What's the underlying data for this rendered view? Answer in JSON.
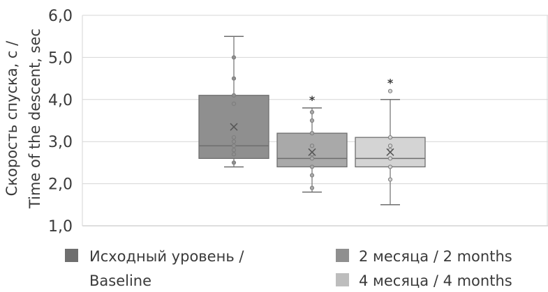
{
  "chart_data": {
    "type": "box",
    "ylabel_line1": "Скорость спуска, с /",
    "ylabel_line2": "Time of the descent, sec",
    "ylim": [
      1.0,
      6.0
    ],
    "yticks": [
      "6,0",
      "5,0",
      "4,0",
      "3,0",
      "2,0",
      "1,0"
    ],
    "ytick_values": [
      6,
      5,
      4,
      3,
      2,
      1
    ],
    "grid": true,
    "legend_position": "bottom",
    "series": [
      {
        "name": "Исходный уровень / Baseline",
        "legend_line1": "Исходный уровень /",
        "legend_line2": "Baseline",
        "color": "#8f8f8f",
        "legend_color": "#6f6f6f",
        "whisker_min": 2.4,
        "q1": 2.6,
        "median": 2.9,
        "q3": 4.1,
        "whisker_max": 5.5,
        "mean": 3.35,
        "points": [
          5.0,
          4.5,
          4.1,
          3.9,
          3.1,
          3.0,
          2.9,
          2.8,
          2.7,
          2.5
        ],
        "significance": ""
      },
      {
        "name": "2 месяца / 2 months",
        "legend_line1": "2 месяца / 2 months",
        "legend_line2": "",
        "color": "#a9a9a9",
        "legend_color": "#8f8f8f",
        "whisker_min": 1.8,
        "q1": 2.4,
        "median": 2.6,
        "q3": 3.2,
        "whisker_max": 3.8,
        "mean": 2.75,
        "points": [
          3.7,
          3.5,
          3.2,
          2.9,
          2.7,
          2.6,
          2.4,
          2.2,
          1.9
        ],
        "significance": "*"
      },
      {
        "name": "4 месяца / 4 months",
        "legend_line1": "4 месяца / 4 months",
        "legend_line2": "",
        "color": "#d4d4d4",
        "legend_color": "#bdbdbd",
        "whisker_min": 1.5,
        "q1": 2.4,
        "median": 2.6,
        "q3": 3.1,
        "whisker_max": 4.0,
        "mean": 2.75,
        "points": [
          4.2,
          3.1,
          2.9,
          2.8,
          2.6,
          2.4,
          2.1
        ],
        "significance": "*"
      }
    ]
  }
}
